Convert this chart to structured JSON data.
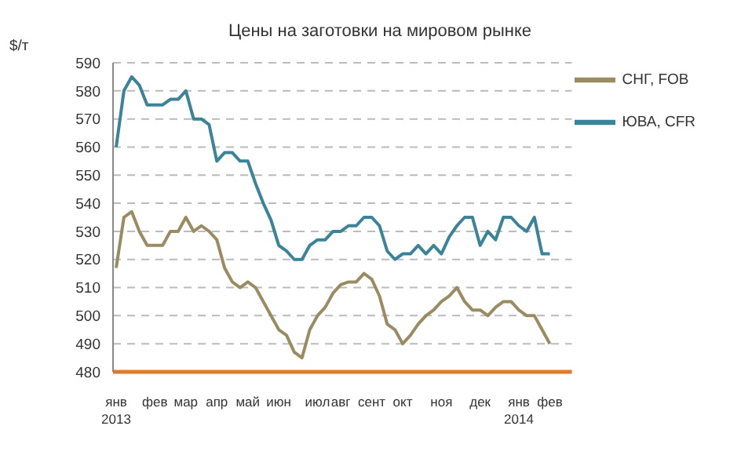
{
  "chart_data": {
    "type": "line",
    "title": "Цены на заготовки на мировом рынке",
    "ylabel": "$/т",
    "categories": [
      "янв 2013",
      null,
      null,
      null,
      null,
      "фев",
      null,
      null,
      null,
      "мар",
      null,
      null,
      null,
      "апр",
      null,
      null,
      null,
      "май",
      null,
      null,
      null,
      "июн",
      null,
      null,
      null,
      null,
      "июл",
      null,
      null,
      "авг",
      null,
      null,
      null,
      "сент",
      null,
      null,
      null,
      "окт",
      null,
      null,
      null,
      null,
      "ноя",
      null,
      null,
      null,
      null,
      "дек",
      null,
      null,
      null,
      null,
      "янв 2014",
      null,
      null,
      null,
      "фев"
    ],
    "series": [
      {
        "name": "СНГ, FOB",
        "color": "#9a8c62",
        "values": [
          517,
          535,
          537,
          530,
          525,
          525,
          525,
          530,
          530,
          535,
          530,
          532,
          530,
          527,
          517,
          512,
          510,
          512,
          510,
          505,
          500,
          495,
          493,
          487,
          485,
          495,
          500,
          503,
          508,
          511,
          512,
          512,
          515,
          513,
          507,
          497,
          495,
          490,
          493,
          497,
          500,
          502,
          505,
          507,
          510,
          505,
          502,
          502,
          500,
          503,
          505,
          505,
          502,
          500,
          500,
          495,
          490
        ]
      },
      {
        "name": "ЮВА, CFR",
        "color": "#3a8399",
        "values": [
          560,
          580,
          585,
          582,
          575,
          575,
          575,
          577,
          577,
          580,
          570,
          570,
          568,
          555,
          558,
          558,
          555,
          555,
          547,
          540,
          534,
          525,
          523,
          520,
          520,
          525,
          527,
          527,
          530,
          530,
          532,
          532,
          535,
          535,
          532,
          523,
          520,
          522,
          522,
          525,
          522,
          525,
          522,
          528,
          532,
          535,
          535,
          525,
          530,
          527,
          535,
          535,
          532,
          530,
          535,
          522,
          522
        ]
      }
    ],
    "ylim": [
      480,
      590
    ],
    "yticks": [
      480,
      490,
      500,
      510,
      520,
      530,
      540,
      550,
      560,
      570,
      580,
      590
    ],
    "grid": "y",
    "legend": "top right",
    "marker": "none",
    "line_style": "solid"
  }
}
